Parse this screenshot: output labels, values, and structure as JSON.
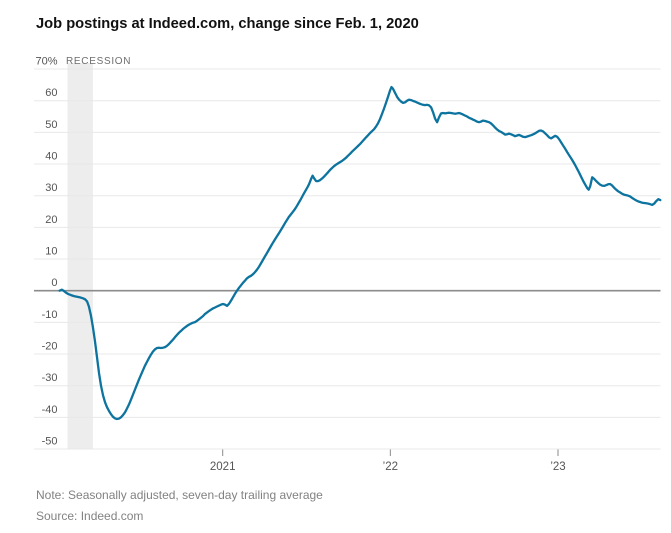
{
  "header": {
    "title": "Job postings at Indeed.com, change since Feb. 1, 2020"
  },
  "footer": {
    "note": "Note: Seasonally adjusted, seven-day trailing average",
    "source": "Source: Indeed.com"
  },
  "colors": {
    "line": "#0d739f",
    "grid": "#e8e8e8",
    "zero_line": "#8b8b8b",
    "recession_band": "#ededed",
    "axis_text": "#555555",
    "tick_mark": "#8a8a8a",
    "recession_text": "#6e6e6e",
    "title_text": "#111111",
    "note_text": "#828282"
  },
  "chart_data": {
    "type": "line",
    "title": "Job postings at Indeed.com, change since Feb. 1, 2020",
    "ylabel": "Change since Feb. 1, 2020 (%)",
    "xlabel": "",
    "unit": "%",
    "grid": true,
    "legend": false,
    "x_axis": {
      "range": [
        2020.02,
        2023.63
      ],
      "ticks": [
        {
          "value": 2021,
          "label": "2021"
        },
        {
          "value": 2022,
          "label": "’22"
        },
        {
          "value": 2023,
          "label": "’23"
        }
      ]
    },
    "y_axis": {
      "range": [
        -50,
        70
      ],
      "ticks": [
        {
          "value": 70,
          "label": "70%"
        },
        {
          "value": 60,
          "label": "60"
        },
        {
          "value": 50,
          "label": "50"
        },
        {
          "value": 40,
          "label": "40"
        },
        {
          "value": 30,
          "label": "30"
        },
        {
          "value": 20,
          "label": "20"
        },
        {
          "value": 10,
          "label": "10"
        },
        {
          "value": 0,
          "label": "0"
        },
        {
          "value": -10,
          "label": "-10"
        },
        {
          "value": -20,
          "label": "-20"
        },
        {
          "value": -30,
          "label": "-30"
        },
        {
          "value": -40,
          "label": "-40"
        },
        {
          "value": -50,
          "label": "-50"
        }
      ]
    },
    "recession": {
      "label": "RECESSION",
      "start": 2020.074,
      "end": 2020.226
    },
    "series_name": "Job postings change since Feb. 1, 2020 (%)",
    "points": [
      [
        2020.027,
        0.0
      ],
      [
        2020.041,
        0.3
      ],
      [
        2020.053,
        -0.1
      ],
      [
        2020.065,
        -0.6
      ],
      [
        2020.077,
        -1.0
      ],
      [
        2020.095,
        -1.4
      ],
      [
        2020.113,
        -1.7
      ],
      [
        2020.131,
        -1.9
      ],
      [
        2020.149,
        -2.1
      ],
      [
        2020.167,
        -2.4
      ],
      [
        2020.179,
        -2.7
      ],
      [
        2020.191,
        -3.4
      ],
      [
        2020.202,
        -5.0
      ],
      [
        2020.214,
        -7.8
      ],
      [
        2020.226,
        -11.5
      ],
      [
        2020.238,
        -16.0
      ],
      [
        2020.25,
        -21.0
      ],
      [
        2020.262,
        -26.0
      ],
      [
        2020.274,
        -30.0
      ],
      [
        2020.286,
        -33.0
      ],
      [
        2020.298,
        -35.2
      ],
      [
        2020.31,
        -36.8
      ],
      [
        2020.322,
        -38.0
      ],
      [
        2020.334,
        -39.0
      ],
      [
        2020.345,
        -39.8
      ],
      [
        2020.357,
        -40.3
      ],
      [
        2020.369,
        -40.5
      ],
      [
        2020.381,
        -40.4
      ],
      [
        2020.393,
        -40.0
      ],
      [
        2020.405,
        -39.3
      ],
      [
        2020.417,
        -38.4
      ],
      [
        2020.429,
        -37.2
      ],
      [
        2020.441,
        -35.9
      ],
      [
        2020.453,
        -34.4
      ],
      [
        2020.465,
        -32.8
      ],
      [
        2020.477,
        -31.2
      ],
      [
        2020.489,
        -29.6
      ],
      [
        2020.501,
        -28.0
      ],
      [
        2020.513,
        -26.5
      ],
      [
        2020.525,
        -25.0
      ],
      [
        2020.536,
        -23.7
      ],
      [
        2020.548,
        -22.5
      ],
      [
        2020.56,
        -21.3
      ],
      [
        2020.572,
        -20.2
      ],
      [
        2020.584,
        -19.2
      ],
      [
        2020.596,
        -18.5
      ],
      [
        2020.608,
        -18.1
      ],
      [
        2020.62,
        -18.0
      ],
      [
        2020.632,
        -18.1
      ],
      [
        2020.644,
        -18.0
      ],
      [
        2020.656,
        -17.8
      ],
      [
        2020.668,
        -17.4
      ],
      [
        2020.68,
        -16.8
      ],
      [
        2020.692,
        -16.1
      ],
      [
        2020.704,
        -15.4
      ],
      [
        2020.715,
        -14.7
      ],
      [
        2020.727,
        -14.0
      ],
      [
        2020.739,
        -13.3
      ],
      [
        2020.751,
        -12.7
      ],
      [
        2020.763,
        -12.1
      ],
      [
        2020.775,
        -11.6
      ],
      [
        2020.787,
        -11.1
      ],
      [
        2020.799,
        -10.7
      ],
      [
        2020.811,
        -10.4
      ],
      [
        2020.823,
        -10.1
      ],
      [
        2020.835,
        -9.9
      ],
      [
        2020.847,
        -9.5
      ],
      [
        2020.859,
        -9.0
      ],
      [
        2020.871,
        -8.5
      ],
      [
        2020.883,
        -8.0
      ],
      [
        2020.894,
        -7.4
      ],
      [
        2020.906,
        -6.9
      ],
      [
        2020.918,
        -6.4
      ],
      [
        2020.93,
        -6.0
      ],
      [
        2020.942,
        -5.6
      ],
      [
        2020.954,
        -5.3
      ],
      [
        2020.966,
        -5.0
      ],
      [
        2020.978,
        -4.7
      ],
      [
        2020.99,
        -4.4
      ],
      [
        2021.002,
        -4.2
      ],
      [
        2021.014,
        -4.4
      ],
      [
        2021.026,
        -4.8
      ],
      [
        2021.038,
        -4.1
      ],
      [
        2021.05,
        -3.1
      ],
      [
        2021.061,
        -2.1
      ],
      [
        2021.073,
        -1.0
      ],
      [
        2021.085,
        0.0
      ],
      [
        2021.097,
        0.9
      ],
      [
        2021.109,
        1.7
      ],
      [
        2021.121,
        2.5
      ],
      [
        2021.133,
        3.2
      ],
      [
        2021.145,
        3.9
      ],
      [
        2021.157,
        4.4
      ],
      [
        2021.169,
        4.7
      ],
      [
        2021.181,
        5.2
      ],
      [
        2021.193,
        5.9
      ],
      [
        2021.205,
        6.7
      ],
      [
        2021.217,
        7.6
      ],
      [
        2021.228,
        8.6
      ],
      [
        2021.24,
        9.7
      ],
      [
        2021.252,
        10.8
      ],
      [
        2021.264,
        11.9
      ],
      [
        2021.276,
        13.0
      ],
      [
        2021.288,
        14.1
      ],
      [
        2021.3,
        15.2
      ],
      [
        2021.312,
        16.2
      ],
      [
        2021.324,
        17.2
      ],
      [
        2021.336,
        18.2
      ],
      [
        2021.348,
        19.2
      ],
      [
        2021.36,
        20.3
      ],
      [
        2021.372,
        21.4
      ],
      [
        2021.384,
        22.4
      ],
      [
        2021.395,
        23.3
      ],
      [
        2021.407,
        24.1
      ],
      [
        2021.419,
        24.9
      ],
      [
        2021.431,
        25.8
      ],
      [
        2021.443,
        26.8
      ],
      [
        2021.455,
        27.9
      ],
      [
        2021.467,
        29.0
      ],
      [
        2021.479,
        30.2
      ],
      [
        2021.491,
        31.3
      ],
      [
        2021.503,
        32.4
      ],
      [
        2021.515,
        33.6
      ],
      [
        2021.527,
        35.3
      ],
      [
        2021.536,
        36.3
      ],
      [
        2021.545,
        35.5
      ],
      [
        2021.557,
        34.6
      ],
      [
        2021.569,
        34.6
      ],
      [
        2021.58,
        34.9
      ],
      [
        2021.592,
        35.4
      ],
      [
        2021.604,
        36.0
      ],
      [
        2021.616,
        36.7
      ],
      [
        2021.628,
        37.4
      ],
      [
        2021.64,
        38.1
      ],
      [
        2021.652,
        38.7
      ],
      [
        2021.664,
        39.3
      ],
      [
        2021.676,
        39.8
      ],
      [
        2021.688,
        40.2
      ],
      [
        2021.7,
        40.6
      ],
      [
        2021.712,
        41.0
      ],
      [
        2021.724,
        41.5
      ],
      [
        2021.736,
        42.0
      ],
      [
        2021.747,
        42.6
      ],
      [
        2021.759,
        43.2
      ],
      [
        2021.771,
        43.9
      ],
      [
        2021.783,
        44.5
      ],
      [
        2021.795,
        45.1
      ],
      [
        2021.807,
        45.7
      ],
      [
        2021.819,
        46.3
      ],
      [
        2021.831,
        47.0
      ],
      [
        2021.843,
        47.7
      ],
      [
        2021.855,
        48.4
      ],
      [
        2021.867,
        49.1
      ],
      [
        2021.879,
        49.8
      ],
      [
        2021.891,
        50.4
      ],
      [
        2021.903,
        51.0
      ],
      [
        2021.914,
        51.8
      ],
      [
        2021.926,
        52.8
      ],
      [
        2021.938,
        54.2
      ],
      [
        2021.95,
        55.8
      ],
      [
        2021.962,
        57.5
      ],
      [
        2021.974,
        59.3
      ],
      [
        2021.986,
        61.2
      ],
      [
        2021.998,
        63.2
      ],
      [
        2022.007,
        64.3
      ],
      [
        2022.016,
        63.8
      ],
      [
        2022.028,
        62.5
      ],
      [
        2022.04,
        61.2
      ],
      [
        2022.052,
        60.3
      ],
      [
        2022.064,
        59.7
      ],
      [
        2022.076,
        59.3
      ],
      [
        2022.088,
        59.5
      ],
      [
        2022.1,
        60.0
      ],
      [
        2022.112,
        60.3
      ],
      [
        2022.124,
        60.2
      ],
      [
        2022.136,
        59.9
      ],
      [
        2022.148,
        59.7
      ],
      [
        2022.16,
        59.4
      ],
      [
        2022.172,
        59.1
      ],
      [
        2022.183,
        58.9
      ],
      [
        2022.195,
        58.7
      ],
      [
        2022.207,
        58.6
      ],
      [
        2022.219,
        58.7
      ],
      [
        2022.231,
        58.5
      ],
      [
        2022.243,
        57.9
      ],
      [
        2022.255,
        56.3
      ],
      [
        2022.267,
        54.3
      ],
      [
        2022.279,
        53.2
      ],
      [
        2022.291,
        54.8
      ],
      [
        2022.303,
        56.0
      ],
      [
        2022.315,
        56.1
      ],
      [
        2022.327,
        56.0
      ],
      [
        2022.339,
        56.1
      ],
      [
        2022.35,
        56.2
      ],
      [
        2022.362,
        56.1
      ],
      [
        2022.374,
        56.0
      ],
      [
        2022.386,
        55.9
      ],
      [
        2022.398,
        56.0
      ],
      [
        2022.41,
        56.1
      ],
      [
        2022.422,
        55.9
      ],
      [
        2022.434,
        55.6
      ],
      [
        2022.446,
        55.3
      ],
      [
        2022.458,
        55.0
      ],
      [
        2022.47,
        54.6
      ],
      [
        2022.482,
        54.3
      ],
      [
        2022.494,
        54.0
      ],
      [
        2022.506,
        53.7
      ],
      [
        2022.517,
        53.4
      ],
      [
        2022.529,
        53.2
      ],
      [
        2022.541,
        53.4
      ],
      [
        2022.553,
        53.7
      ],
      [
        2022.565,
        53.6
      ],
      [
        2022.577,
        53.4
      ],
      [
        2022.589,
        53.2
      ],
      [
        2022.601,
        52.8
      ],
      [
        2022.613,
        52.2
      ],
      [
        2022.625,
        51.5
      ],
      [
        2022.637,
        50.9
      ],
      [
        2022.649,
        50.4
      ],
      [
        2022.661,
        50.1
      ],
      [
        2022.673,
        49.7
      ],
      [
        2022.685,
        49.3
      ],
      [
        2022.697,
        49.4
      ],
      [
        2022.708,
        49.6
      ],
      [
        2022.72,
        49.4
      ],
      [
        2022.732,
        49.1
      ],
      [
        2022.744,
        48.8
      ],
      [
        2022.756,
        49.0
      ],
      [
        2022.768,
        49.2
      ],
      [
        2022.78,
        48.9
      ],
      [
        2022.792,
        48.6
      ],
      [
        2022.804,
        48.5
      ],
      [
        2022.816,
        48.7
      ],
      [
        2022.828,
        48.9
      ],
      [
        2022.84,
        49.1
      ],
      [
        2022.852,
        49.4
      ],
      [
        2022.864,
        49.7
      ],
      [
        2022.876,
        50.1
      ],
      [
        2022.887,
        50.5
      ],
      [
        2022.899,
        50.6
      ],
      [
        2022.911,
        50.3
      ],
      [
        2022.923,
        49.7
      ],
      [
        2022.935,
        49.1
      ],
      [
        2022.947,
        48.4
      ],
      [
        2022.959,
        48.1
      ],
      [
        2022.971,
        48.5
      ],
      [
        2022.983,
        48.9
      ],
      [
        2022.995,
        48.6
      ],
      [
        2023.007,
        47.8
      ],
      [
        2023.019,
        46.8
      ],
      [
        2023.031,
        45.8
      ],
      [
        2023.043,
        44.8
      ],
      [
        2023.054,
        43.8
      ],
      [
        2023.066,
        42.8
      ],
      [
        2023.078,
        41.8
      ],
      [
        2023.09,
        40.8
      ],
      [
        2023.102,
        39.7
      ],
      [
        2023.114,
        38.5
      ],
      [
        2023.126,
        37.3
      ],
      [
        2023.138,
        36.0
      ],
      [
        2023.15,
        34.7
      ],
      [
        2023.162,
        33.5
      ],
      [
        2023.174,
        32.4
      ],
      [
        2023.183,
        31.9
      ],
      [
        2023.192,
        33.0
      ],
      [
        2023.204,
        35.8
      ],
      [
        2023.216,
        35.3
      ],
      [
        2023.228,
        34.6
      ],
      [
        2023.24,
        34.0
      ],
      [
        2023.251,
        33.5
      ],
      [
        2023.263,
        33.2
      ],
      [
        2023.275,
        33.1
      ],
      [
        2023.287,
        33.3
      ],
      [
        2023.299,
        33.6
      ],
      [
        2023.311,
        33.7
      ],
      [
        2023.323,
        33.2
      ],
      [
        2023.335,
        32.5
      ],
      [
        2023.347,
        31.9
      ],
      [
        2023.359,
        31.4
      ],
      [
        2023.371,
        31.0
      ],
      [
        2023.383,
        30.6
      ],
      [
        2023.395,
        30.3
      ],
      [
        2023.407,
        30.2
      ],
      [
        2023.419,
        30.0
      ],
      [
        2023.431,
        29.7
      ],
      [
        2023.442,
        29.3
      ],
      [
        2023.454,
        28.9
      ],
      [
        2023.466,
        28.5
      ],
      [
        2023.478,
        28.2
      ],
      [
        2023.49,
        28.0
      ],
      [
        2023.502,
        27.8
      ],
      [
        2023.514,
        27.7
      ],
      [
        2023.526,
        27.6
      ],
      [
        2023.538,
        27.5
      ],
      [
        2023.55,
        27.3
      ],
      [
        2023.562,
        27.1
      ],
      [
        2023.574,
        27.5
      ],
      [
        2023.586,
        28.3
      ],
      [
        2023.598,
        28.9
      ],
      [
        2023.61,
        28.6
      ]
    ]
  }
}
